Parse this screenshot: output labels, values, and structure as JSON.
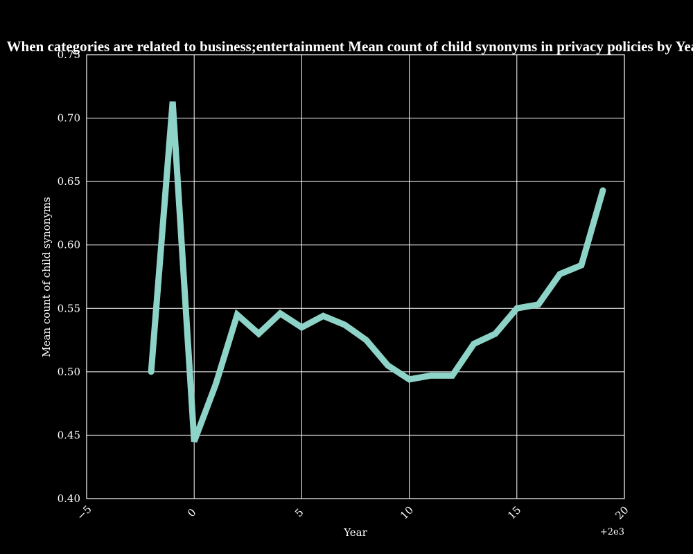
{
  "chart_data": {
    "type": "line",
    "title": "When categories are related to business;entertainment Mean count of child synonyms in privacy policies by Year",
    "xlabel": "Year",
    "ylabel": "Mean count of child synonyms",
    "x_offset_label": "+2e3",
    "xlim": [
      -5,
      20
    ],
    "ylim": [
      0.4,
      0.75
    ],
    "grid": true,
    "x_ticks": [
      "−5",
      "0",
      "5",
      "10",
      "15",
      "20"
    ],
    "y_ticks": [
      "0.40",
      "0.45",
      "0.50",
      "0.55",
      "0.60",
      "0.65",
      "0.70",
      "0.75"
    ],
    "series": [
      {
        "color": "#8dd3c7",
        "x": [
          -2,
          -1,
          0,
          1,
          2,
          3,
          4,
          5,
          6,
          7,
          8,
          9,
          10,
          11,
          12,
          13,
          14,
          15,
          16,
          17,
          18,
          19
        ],
        "y": [
          0.5,
          0.713,
          0.445,
          0.49,
          0.545,
          0.53,
          0.546,
          0.535,
          0.544,
          0.537,
          0.525,
          0.505,
          0.494,
          0.497,
          0.497,
          0.522,
          0.53,
          0.55,
          0.553,
          0.577,
          0.584,
          0.643
        ]
      }
    ]
  }
}
